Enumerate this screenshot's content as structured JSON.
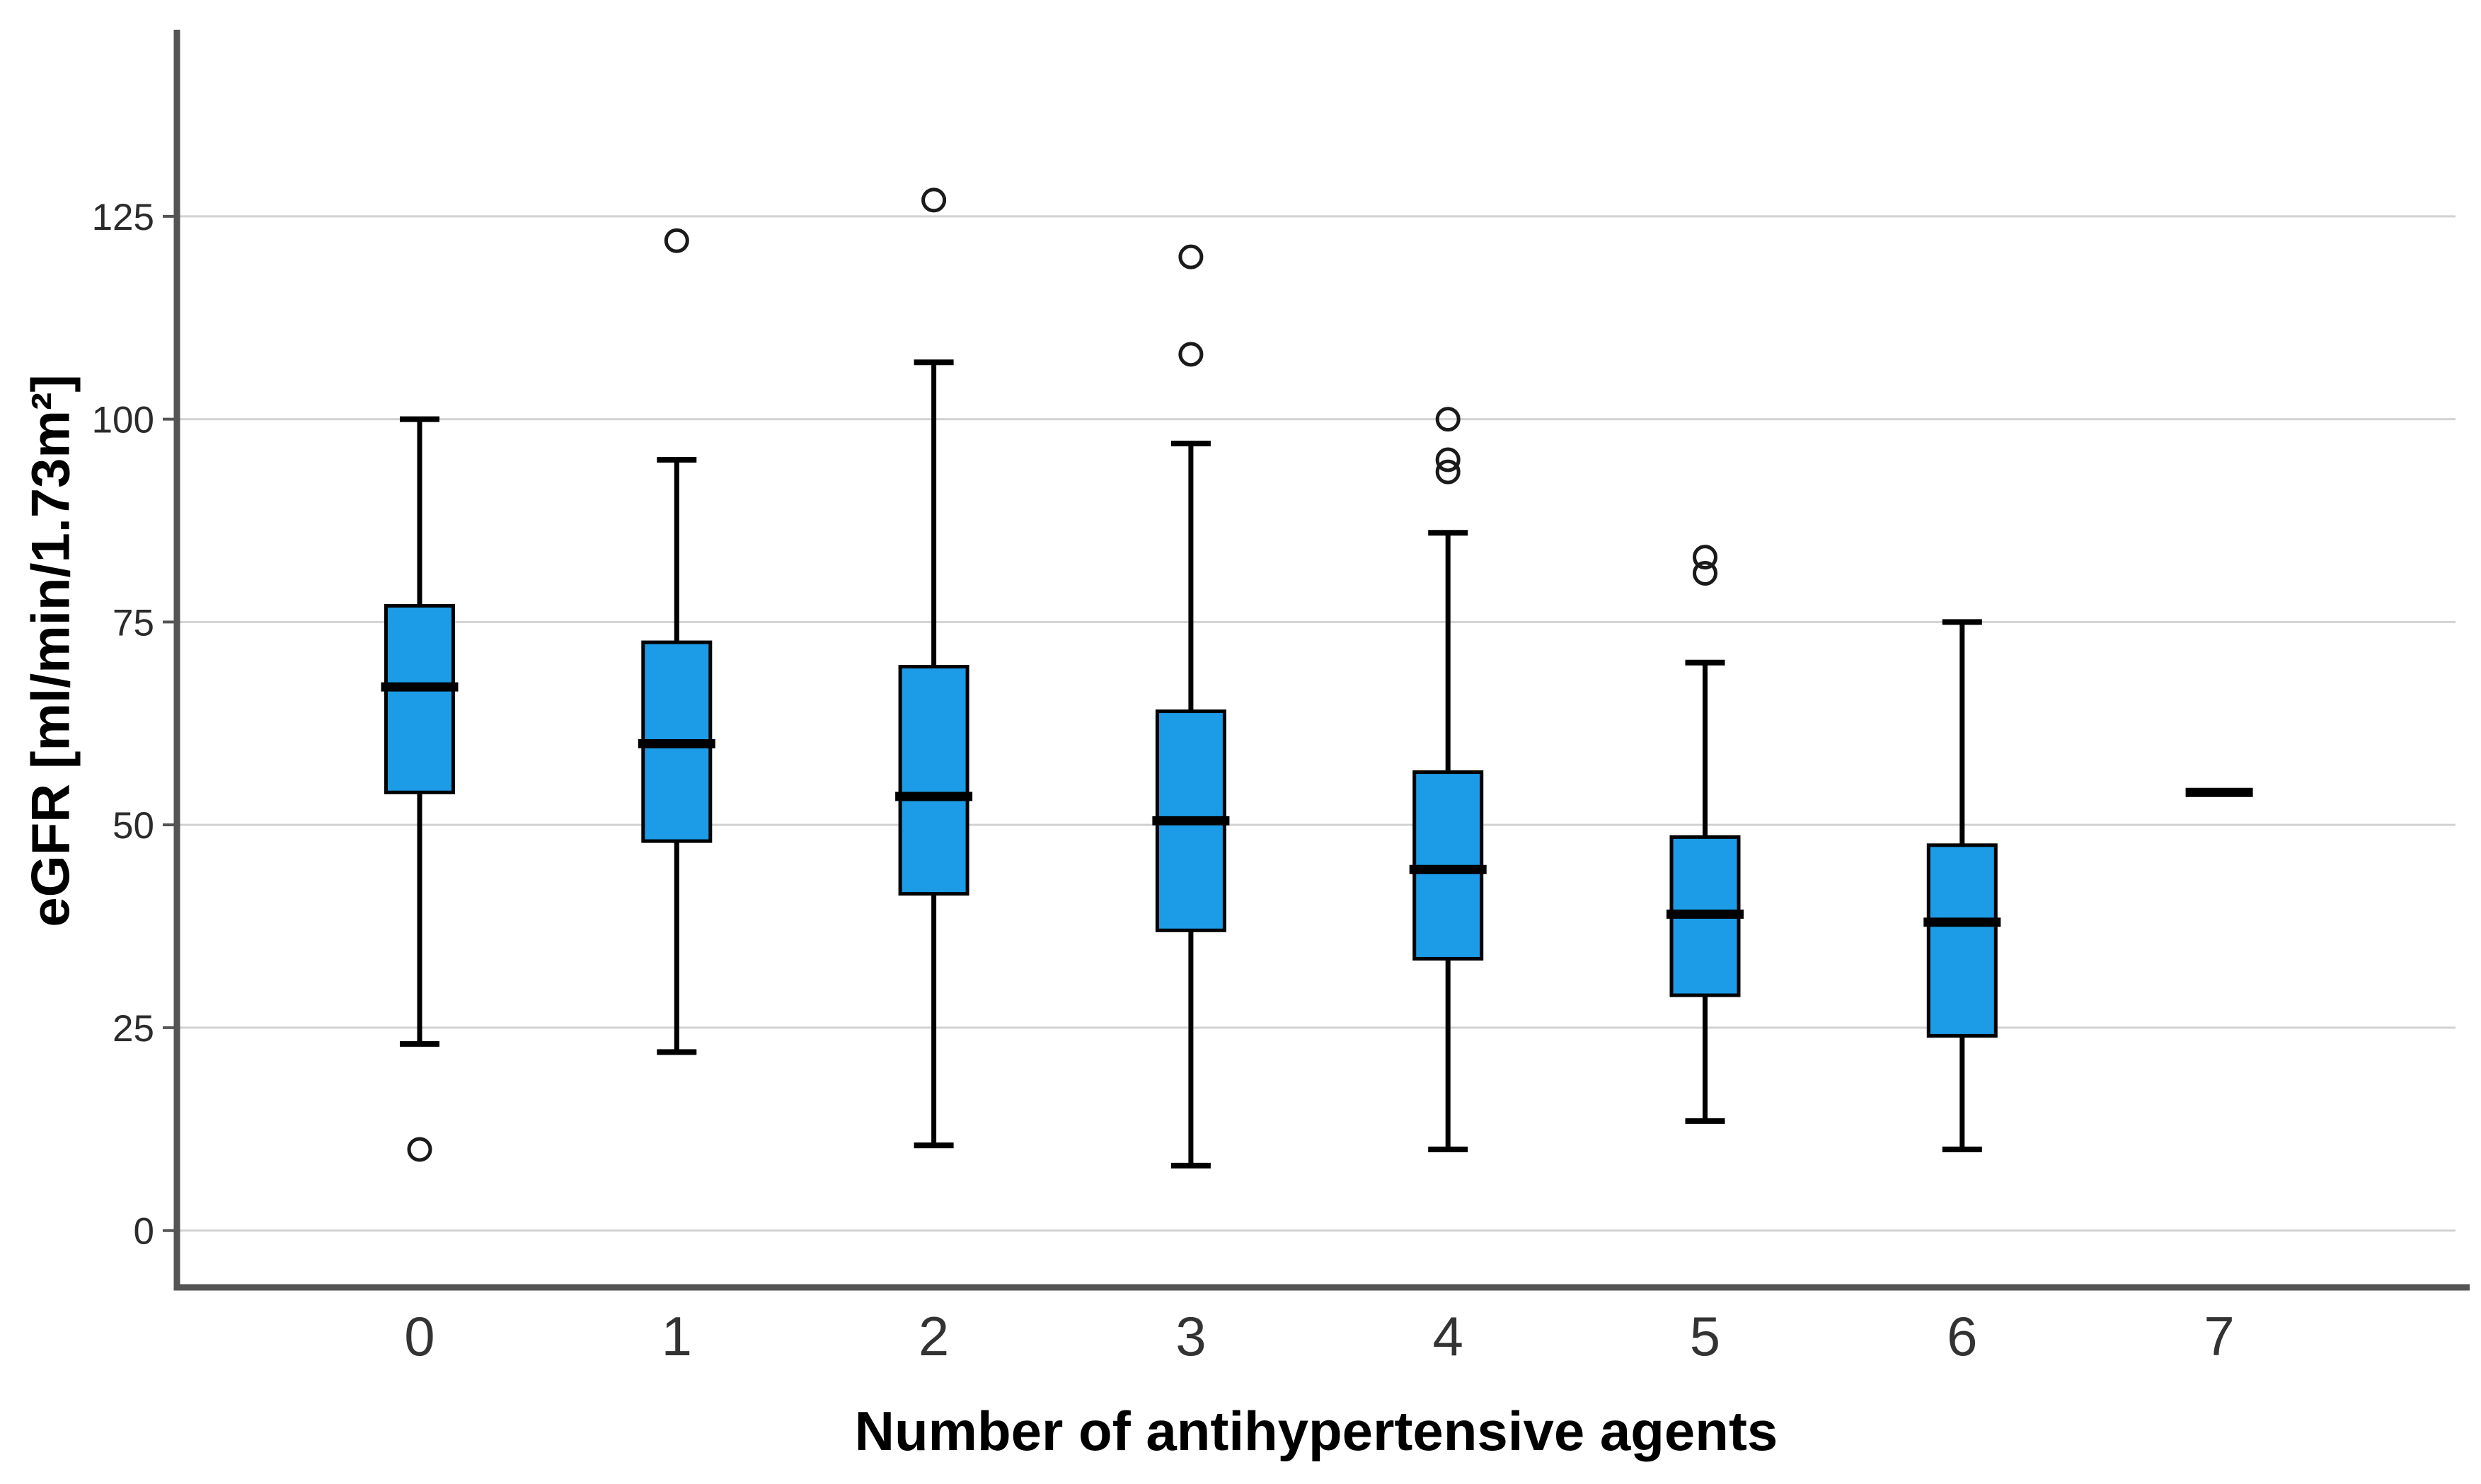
{
  "figure": {
    "background": "#FFFFFF"
  },
  "chart_data": {
    "type": "boxplot",
    "title": "",
    "xlabel": "Number of antihypertensive agents",
    "ylabel": "eGFR [ml/min/1.73m²]",
    "categories": [
      "0",
      "1",
      "2",
      "3",
      "4",
      "5",
      "6",
      "7"
    ],
    "yticks": [
      0,
      25,
      50,
      75,
      100,
      125
    ],
    "ylim": [
      -7,
      148
    ],
    "grid": true,
    "legend": null,
    "boxes": [
      {
        "category": "0",
        "whisker_low": 23,
        "q1": 54,
        "median": 67,
        "q3": 77,
        "whisker_high": 100,
        "outliers": [
          10
        ]
      },
      {
        "category": "1",
        "whisker_low": 22,
        "q1": 48,
        "median": 60,
        "q3": 72.5,
        "whisker_high": 95,
        "outliers": [
          122
        ]
      },
      {
        "category": "2",
        "whisker_low": 10.5,
        "q1": 41.5,
        "median": 53.5,
        "q3": 69.5,
        "whisker_high": 107,
        "outliers": [
          127
        ]
      },
      {
        "category": "3",
        "whisker_low": 8,
        "q1": 37,
        "median": 50.5,
        "q3": 64,
        "whisker_high": 97,
        "outliers": [
          108,
          120
        ]
      },
      {
        "category": "4",
        "whisker_low": 10,
        "q1": 33.5,
        "median": 44.5,
        "q3": 56.5,
        "whisker_high": 86,
        "outliers": [
          93.5,
          95,
          100
        ]
      },
      {
        "category": "5",
        "whisker_low": 13.5,
        "q1": 29,
        "median": 39,
        "q3": 48.5,
        "whisker_high": 70,
        "outliers": [
          81,
          83
        ]
      },
      {
        "category": "6",
        "whisker_low": 10,
        "q1": 24,
        "median": 38,
        "q3": 47.5,
        "whisker_high": 75,
        "outliers": []
      },
      {
        "category": "7",
        "whisker_low": null,
        "q1": null,
        "median": 54,
        "q3": null,
        "whisker_high": null,
        "outliers": [],
        "single_value": 54
      }
    ],
    "colors": {
      "box_fill": "#1C9CE6",
      "box_stroke": "#000000",
      "median": "#000000",
      "whisker": "#000000",
      "outlier_stroke": "#1A1A1A",
      "gridline": "#D2D2D2",
      "axis_line": "#545454",
      "tick_label": "#2B2B2B",
      "axis_title": "#000000"
    }
  }
}
